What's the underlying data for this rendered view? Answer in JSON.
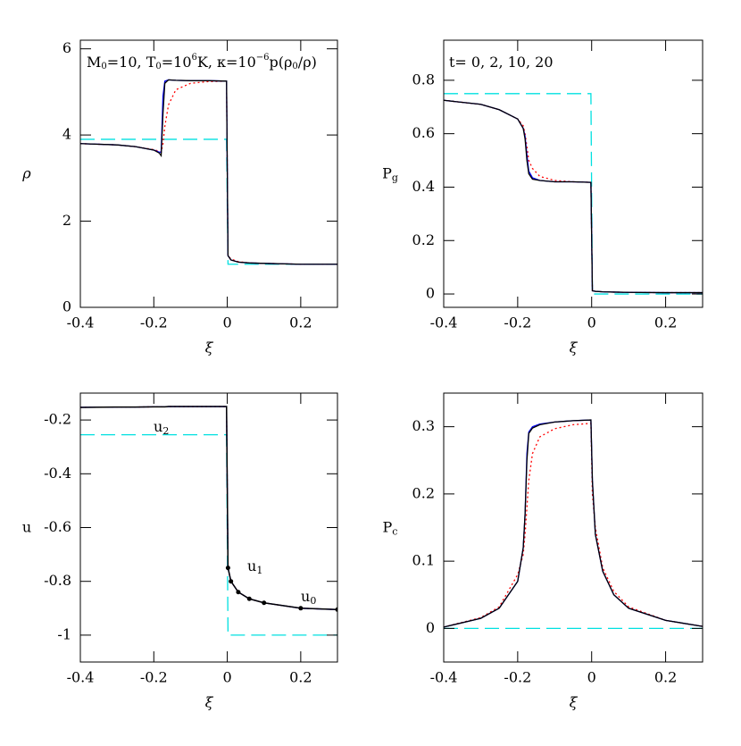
{
  "chart_data": [
    {
      "type": "line",
      "ylabel": "ρ",
      "xlabel": "ξ",
      "annotation": [
        {
          "text": "M"
        },
        {
          "sub": "0"
        },
        {
          "text": "=10, T"
        },
        {
          "sub": "0"
        },
        {
          "text": "=10"
        },
        {
          "sup": "6"
        },
        {
          "text": "K, κ=10"
        },
        {
          "sup": "−6"
        },
        {
          "text": "p(ρ"
        },
        {
          "sub": "0"
        },
        {
          "text": "/ρ)"
        }
      ],
      "x": [
        -0.4,
        -0.3,
        -0.25,
        -0.2,
        -0.185,
        -0.18,
        -0.175,
        -0.17,
        -0.16,
        -0.14,
        -0.1,
        -0.05,
        -0.002,
        0.002,
        0.01,
        0.03,
        0.06,
        0.1,
        0.2,
        0.3
      ],
      "xlim": [
        -0.4,
        0.3
      ],
      "xticks": [
        -0.4,
        -0.2,
        0,
        0.2
      ],
      "ylim": [
        0,
        6.2
      ],
      "yticks": [
        0,
        2,
        4,
        6
      ],
      "series": [
        {
          "color": "#00e0e0",
          "dash": "dashed",
          "values": [
            3.9,
            3.9,
            3.9,
            3.9,
            3.9,
            3.9,
            3.9,
            3.9,
            3.9,
            3.9,
            3.9,
            3.9,
            3.9,
            1.0,
            1.0,
            1.0,
            1.0,
            1.0,
            1.0,
            1.0
          ]
        },
        {
          "color": "#ff0000",
          "dash": "dotted",
          "values": [
            3.8,
            3.77,
            3.73,
            3.66,
            3.62,
            3.6,
            3.8,
            4.2,
            4.7,
            5.05,
            5.2,
            5.24,
            5.25,
            1.2,
            1.12,
            1.06,
            1.03,
            1.02,
            1.0,
            1.0
          ]
        },
        {
          "color": "#0000ff",
          "dash": "solid",
          "values": [
            3.8,
            3.77,
            3.73,
            3.65,
            3.6,
            3.6,
            4.9,
            5.25,
            5.28,
            5.27,
            5.26,
            5.26,
            5.25,
            1.2,
            1.1,
            1.05,
            1.03,
            1.02,
            1.0,
            1.0
          ]
        },
        {
          "color": "#000000",
          "dash": "solid",
          "values": [
            3.8,
            3.77,
            3.73,
            3.65,
            3.58,
            3.52,
            4.5,
            5.2,
            5.28,
            5.27,
            5.26,
            5.26,
            5.25,
            1.2,
            1.1,
            1.05,
            1.03,
            1.02,
            1.0,
            1.0
          ]
        }
      ]
    },
    {
      "type": "line",
      "ylabel": "P",
      "ylabel_sub": "g",
      "xlabel": "ξ",
      "annotation": [
        {
          "text": "t= 0, 2, 10, 20"
        }
      ],
      "x": [
        -0.4,
        -0.3,
        -0.25,
        -0.2,
        -0.185,
        -0.18,
        -0.175,
        -0.17,
        -0.16,
        -0.14,
        -0.1,
        -0.05,
        -0.002,
        0.002,
        0.01,
        0.03,
        0.06,
        0.1,
        0.2,
        0.3
      ],
      "xlim": [
        -0.4,
        0.3
      ],
      "xticks": [
        -0.4,
        -0.2,
        0,
        0.2
      ],
      "ylim": [
        -0.05,
        0.95
      ],
      "yticks": [
        0,
        0.2,
        0.4,
        0.6,
        0.8
      ],
      "series": [
        {
          "color": "#00e0e0",
          "dash": "dashed",
          "values": [
            0.75,
            0.75,
            0.75,
            0.75,
            0.75,
            0.75,
            0.75,
            0.75,
            0.75,
            0.75,
            0.75,
            0.75,
            0.75,
            0.0,
            0.0,
            0.0,
            0.0,
            0.0,
            0.0,
            0.0
          ]
        },
        {
          "color": "#ff0000",
          "dash": "dotted",
          "values": [
            0.725,
            0.71,
            0.69,
            0.655,
            0.63,
            0.6,
            0.55,
            0.5,
            0.47,
            0.44,
            0.425,
            0.42,
            0.418,
            0.012,
            0.01,
            0.008,
            0.007,
            0.006,
            0.005,
            0.005
          ]
        },
        {
          "color": "#0000ff",
          "dash": "solid",
          "values": [
            0.725,
            0.71,
            0.69,
            0.655,
            0.62,
            0.59,
            0.52,
            0.46,
            0.435,
            0.425,
            0.42,
            0.42,
            0.418,
            0.012,
            0.01,
            0.008,
            0.007,
            0.006,
            0.005,
            0.005
          ]
        },
        {
          "color": "#000000",
          "dash": "solid",
          "values": [
            0.725,
            0.71,
            0.69,
            0.655,
            0.62,
            0.58,
            0.5,
            0.45,
            0.43,
            0.425,
            0.42,
            0.42,
            0.418,
            0.012,
            0.01,
            0.008,
            0.007,
            0.006,
            0.005,
            0.005
          ]
        }
      ]
    },
    {
      "type": "line",
      "ylabel": "u",
      "xlabel": "ξ",
      "labels": [
        {
          "text": "u",
          "sub": "2"
        },
        {
          "text": "u",
          "sub": "1"
        },
        {
          "text": "u",
          "sub": "0"
        }
      ],
      "x": [
        -0.4,
        -0.3,
        -0.25,
        -0.2,
        -0.185,
        -0.18,
        -0.175,
        -0.17,
        -0.16,
        -0.14,
        -0.1,
        -0.05,
        -0.002,
        0.002,
        0.01,
        0.03,
        0.06,
        0.1,
        0.2,
        0.3
      ],
      "xlim": [
        -0.4,
        0.3
      ],
      "xticks": [
        -0.4,
        -0.2,
        0,
        0.2
      ],
      "ylim": [
        -1.1,
        -0.1
      ],
      "yticks": [
        -1,
        -0.8,
        -0.6,
        -0.4,
        -0.2
      ],
      "series": [
        {
          "color": "#00e0e0",
          "dash": "dashed",
          "values": [
            -0.255,
            -0.255,
            -0.255,
            -0.255,
            -0.255,
            -0.255,
            -0.255,
            -0.255,
            -0.255,
            -0.255,
            -0.255,
            -0.255,
            -0.255,
            -1.0,
            -1.0,
            -1.0,
            -1.0,
            -1.0,
            -1.0,
            -1.0
          ]
        },
        {
          "color": "#ff0000",
          "dash": "dotted",
          "values": [
            -0.153,
            -0.152,
            -0.152,
            -0.151,
            -0.151,
            -0.151,
            -0.151,
            -0.151,
            -0.15,
            -0.15,
            -0.15,
            -0.15,
            -0.15,
            -0.75,
            -0.8,
            -0.84,
            -0.865,
            -0.88,
            -0.9,
            -0.905
          ]
        },
        {
          "color": "#0000ff",
          "dash": "solid",
          "values": [
            -0.153,
            -0.152,
            -0.152,
            -0.151,
            -0.151,
            -0.151,
            -0.151,
            -0.151,
            -0.15,
            -0.15,
            -0.15,
            -0.15,
            -0.15,
            -0.75,
            -0.8,
            -0.84,
            -0.865,
            -0.88,
            -0.9,
            -0.905
          ]
        },
        {
          "color": "#000000",
          "dash": "solid",
          "markers": true,
          "values": [
            -0.153,
            -0.152,
            -0.152,
            -0.151,
            -0.151,
            -0.151,
            -0.151,
            -0.151,
            -0.15,
            -0.15,
            -0.15,
            -0.15,
            -0.15,
            -0.75,
            -0.8,
            -0.84,
            -0.865,
            -0.88,
            -0.9,
            -0.905
          ]
        }
      ]
    },
    {
      "type": "line",
      "ylabel": "P",
      "ylabel_sub": "c",
      "xlabel": "ξ",
      "x": [
        -0.4,
        -0.3,
        -0.25,
        -0.2,
        -0.185,
        -0.18,
        -0.175,
        -0.17,
        -0.16,
        -0.14,
        -0.1,
        -0.05,
        -0.002,
        0.002,
        0.01,
        0.03,
        0.06,
        0.1,
        0.2,
        0.3
      ],
      "xlim": [
        -0.4,
        0.3
      ],
      "xticks": [
        -0.4,
        -0.2,
        0,
        0.2
      ],
      "ylim": [
        -0.05,
        0.35
      ],
      "yticks": [
        0,
        0.1,
        0.2,
        0.3
      ],
      "series": [
        {
          "color": "#00e0e0",
          "dash": "dashed",
          "values": [
            0,
            0,
            0,
            0,
            0,
            0,
            0,
            0,
            0,
            0,
            0,
            0,
            0,
            0,
            0,
            0,
            0,
            0,
            0,
            0
          ]
        },
        {
          "color": "#ff0000",
          "dash": "dotted",
          "values": [
            0.002,
            0.016,
            0.032,
            0.08,
            0.11,
            0.14,
            0.18,
            0.22,
            0.26,
            0.285,
            0.297,
            0.303,
            0.305,
            0.2,
            0.15,
            0.09,
            0.055,
            0.032,
            0.012,
            0.003
          ]
        },
        {
          "color": "#0000ff",
          "dash": "solid",
          "values": [
            0.002,
            0.015,
            0.03,
            0.07,
            0.12,
            0.17,
            0.26,
            0.292,
            0.3,
            0.304,
            0.307,
            0.309,
            0.31,
            0.22,
            0.14,
            0.085,
            0.05,
            0.03,
            0.012,
            0.003
          ]
        },
        {
          "color": "#000000",
          "dash": "solid",
          "values": [
            0.002,
            0.015,
            0.03,
            0.07,
            0.12,
            0.17,
            0.25,
            0.29,
            0.298,
            0.303,
            0.307,
            0.309,
            0.31,
            0.22,
            0.14,
            0.085,
            0.05,
            0.03,
            0.012,
            0.003
          ]
        }
      ]
    }
  ]
}
